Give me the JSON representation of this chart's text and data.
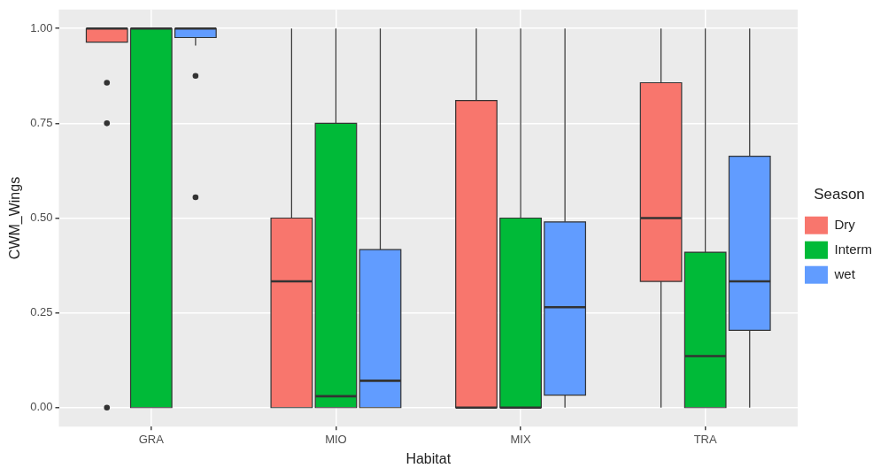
{
  "chart_data": {
    "type": "box",
    "xlabel": "Habitat",
    "ylabel": "CWM_Wings",
    "legend_title": "Season",
    "legend": "right",
    "grid": true,
    "categories": [
      "GRA",
      "MIO",
      "MIX",
      "TRA"
    ],
    "ylim": [
      -0.05,
      1.05
    ],
    "yticks": [
      {
        "value": 0,
        "label": "0.00"
      },
      {
        "value": 0.25,
        "label": "0.25"
      },
      {
        "value": 0.5,
        "label": "0.50"
      },
      {
        "value": 0.75,
        "label": "0.75"
      },
      {
        "value": 1,
        "label": "1.00"
      }
    ],
    "series": [
      {
        "name": "Dry",
        "color": "#f8766d",
        "boxes": [
          {
            "low": 0.964,
            "q1": 0.964,
            "median": 1,
            "q3": 1,
            "high": 1,
            "outliers": [
              0.857,
              0.75,
              0
            ]
          },
          {
            "low": 0,
            "q1": 0,
            "median": 0.333,
            "q3": 0.5,
            "high": 1
          },
          {
            "low": 0,
            "q1": 0,
            "median": 0,
            "q3": 0.81,
            "high": 1
          },
          {
            "low": 0,
            "q1": 0.333,
            "median": 0.5,
            "q3": 0.857,
            "high": 1
          }
        ]
      },
      {
        "name": "Interm",
        "color": "#00ba38",
        "boxes": [
          {
            "low": 0,
            "q1": 0,
            "median": 1,
            "q3": 1,
            "high": 1
          },
          {
            "low": 0,
            "q1": 0,
            "median": 0.03,
            "q3": 0.75,
            "high": 1
          },
          {
            "low": 0,
            "q1": 0,
            "median": 0,
            "q3": 0.5,
            "high": 1
          },
          {
            "low": 0,
            "q1": 0,
            "median": 0.136,
            "q3": 0.41,
            "high": 1
          }
        ]
      },
      {
        "name": "wet",
        "color": "#619cff",
        "boxes": [
          {
            "low": 0.955,
            "q1": 0.976,
            "median": 1,
            "q3": 1,
            "high": 1,
            "outliers": [
              0.875,
              0.555
            ]
          },
          {
            "low": 0,
            "q1": 0,
            "median": 0.071,
            "q3": 0.417,
            "high": 1
          },
          {
            "low": 0,
            "q1": 0.033,
            "median": 0.265,
            "q3": 0.49,
            "high": 1
          },
          {
            "low": 0,
            "q1": 0.204,
            "median": 0.333,
            "q3": 0.663,
            "high": 1
          }
        ]
      }
    ]
  }
}
